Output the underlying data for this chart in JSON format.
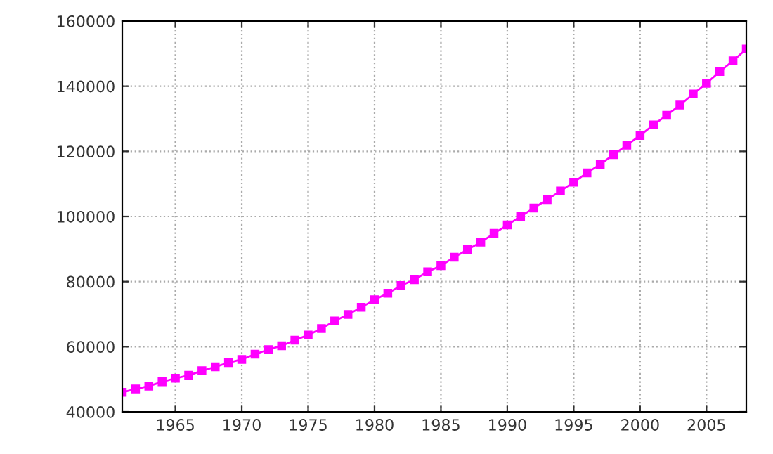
{
  "chart_data": {
    "type": "line",
    "x": [
      1961,
      1962,
      1963,
      1964,
      1965,
      1966,
      1967,
      1968,
      1969,
      1970,
      1971,
      1972,
      1973,
      1974,
      1975,
      1976,
      1977,
      1978,
      1979,
      1980,
      1981,
      1982,
      1983,
      1984,
      1985,
      1986,
      1987,
      1988,
      1989,
      1990,
      1991,
      1992,
      1993,
      1994,
      1995,
      1996,
      1997,
      1998,
      1999,
      2000,
      2001,
      2002,
      2003,
      2004,
      2005,
      2006,
      2007,
      2008
    ],
    "series": [
      {
        "color": "#ff00ff",
        "values": [
          46000,
          47000,
          47900,
          49200,
          50300,
          51200,
          52600,
          53800,
          55100,
          56100,
          57700,
          59100,
          60300,
          62000,
          63600,
          65600,
          67900,
          69900,
          72100,
          74400,
          76400,
          78800,
          80600,
          83000,
          84900,
          87500,
          89800,
          92100,
          94800,
          97400,
          100000,
          102600,
          105200,
          107800,
          110500,
          113400,
          116000,
          119000,
          121900,
          124900,
          128100,
          131100,
          134200,
          137600,
          140900,
          144500,
          147800,
          151400
        ]
      }
    ],
    "xlim": [
      1961,
      2008
    ],
    "ylim": [
      40000,
      160000
    ],
    "xticks": [
      1965,
      1970,
      1975,
      1980,
      1985,
      1990,
      1995,
      2000,
      2005
    ],
    "yticks": [
      40000,
      60000,
      80000,
      100000,
      120000,
      140000,
      160000
    ],
    "grid": true,
    "marker": "square",
    "line_style": "solid"
  }
}
